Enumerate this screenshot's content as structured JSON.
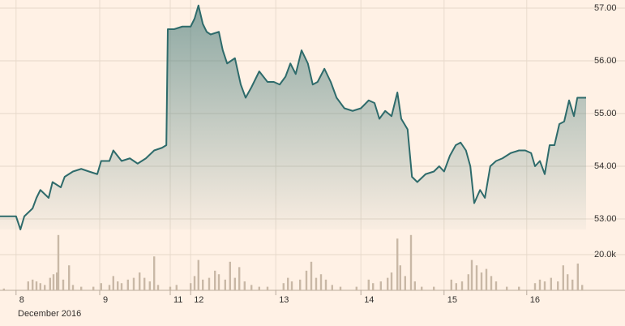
{
  "chart_data": {
    "type": "line",
    "xlabel": "December 2016",
    "x": [
      0,
      3.3,
      4.2,
      5,
      6.7,
      7.5,
      8.3,
      10,
      10.8,
      12.5,
      13.3,
      15,
      16.7,
      18.3,
      20,
      20.8,
      22.5,
      23.3,
      25,
      26.7,
      28.3,
      30,
      31.7,
      33.3,
      34.2,
      34.5,
      35.8,
      37.5,
      39.2,
      40,
      40.8,
      41.7,
      42.5,
      43.3,
      45,
      45.8,
      46.7,
      48.3,
      49.5,
      50.5,
      51.7,
      53.3,
      55,
      56.3,
      57.5,
      58.7,
      59.7,
      60.8,
      62,
      63.3,
      64.3,
      65.3,
      66.7,
      68,
      69.2,
      70.8,
      72.5,
      74.2,
      75.8,
      77,
      78,
      79.2,
      80.5,
      81.7,
      82.5,
      83.8,
      84.7,
      85.8,
      87.5,
      89.2,
      90.3,
      91.3,
      92.5,
      93.7,
      94.7,
      95.8,
      96.7,
      97.5,
      98.7,
      99.7,
      100.8,
      102,
      103.3,
      105,
      106.7,
      108,
      109.2,
      110,
      111,
      112,
      113,
      114,
      115,
      116,
      117,
      118,
      118.7,
      119.7,
      120.5
    ],
    "series": [
      {
        "color": "#2e6b6b",
        "values": [
          53.05,
          53.05,
          52.8,
          53.05,
          53.2,
          53.4,
          53.55,
          53.4,
          53.7,
          53.6,
          53.8,
          53.9,
          53.95,
          53.9,
          53.85,
          54.1,
          54.1,
          54.3,
          54.1,
          54.15,
          54.05,
          54.15,
          54.3,
          54.35,
          54.4,
          56.6,
          56.6,
          56.65,
          56.65,
          56.8,
          57.05,
          56.7,
          56.55,
          56.5,
          56.55,
          56.2,
          55.95,
          56.05,
          55.55,
          55.3,
          55.5,
          55.8,
          55.6,
          55.6,
          55.55,
          55.7,
          55.95,
          55.75,
          56.2,
          55.95,
          55.55,
          55.6,
          55.85,
          55.6,
          55.3,
          55.1,
          55.05,
          55.1,
          55.25,
          55.2,
          54.9,
          55.05,
          54.95,
          55.4,
          54.9,
          54.7,
          53.8,
          53.7,
          53.85,
          53.9,
          54,
          53.9,
          54.2,
          54.4,
          54.45,
          54.3,
          54,
          53.3,
          53.55,
          53.4,
          54,
          54.1,
          54.15,
          54.25,
          54.3,
          54.3,
          54.25,
          54,
          54.1,
          53.85,
          54.4,
          54.4,
          54.8,
          54.85,
          55.25,
          54.95,
          55.3,
          55.3,
          55.3
        ]
      }
    ],
    "xlim": [
      0,
      120.5
    ],
    "xticks": [
      {
        "value": 3.3,
        "label": "8"
      },
      {
        "value": 20.5,
        "label": "9"
      },
      {
        "value": 35,
        "label": "11"
      },
      {
        "value": 39.2,
        "label": "12"
      },
      {
        "value": 56.7,
        "label": "13"
      },
      {
        "value": 74.2,
        "label": "14"
      },
      {
        "value": 91.3,
        "label": "15"
      },
      {
        "value": 108.3,
        "label": "16"
      }
    ],
    "ylim": [
      52.8,
      57.1
    ],
    "yticks": [
      {
        "value": 53,
        "label": "53.00"
      },
      {
        "value": 54,
        "label": "54.00"
      },
      {
        "value": 55,
        "label": "55.00"
      },
      {
        "value": 56,
        "label": "56.00"
      },
      {
        "value": 57,
        "label": "57.00"
      }
    ],
    "grid": true,
    "volume": {
      "type": "bar",
      "color": "#c9b8a6",
      "x": [
        0.8,
        5.8,
        6.7,
        7.5,
        8.3,
        9.2,
        10.3,
        11,
        11.7,
        12,
        13,
        14.2,
        15,
        16.7,
        19.2,
        20.8,
        22.5,
        23.3,
        24.2,
        25,
        26.3,
        27.5,
        28.7,
        29.7,
        30.8,
        31.7,
        32.5,
        35,
        36.3,
        39.2,
        40,
        40.8,
        41.7,
        43,
        44.2,
        45,
        46.3,
        47.3,
        48.3,
        49.2,
        50.3,
        51.7,
        53.3,
        55,
        58.3,
        59.2,
        60,
        61.7,
        63,
        64,
        65,
        66,
        67,
        68.3,
        70,
        73.3,
        75.8,
        76.7,
        78.3,
        79.7,
        80.5,
        81.7,
        82.3,
        83.3,
        84.5,
        85.3,
        86.7,
        89.2,
        92.8,
        93.8,
        95,
        96.3,
        97,
        98,
        99,
        100,
        101,
        102,
        104.2,
        106.7,
        110,
        111,
        112,
        113.3,
        114.7,
        115.8,
        116.7,
        117.7,
        118.8,
        119.7
      ],
      "values": [
        1000,
        5000,
        6000,
        5000,
        4000,
        3000,
        7000,
        9000,
        10000,
        31000,
        6000,
        14000,
        3000,
        2000,
        2000,
        4000,
        3000,
        8000,
        5000,
        4000,
        6000,
        7000,
        10000,
        7000,
        5000,
        19000,
        3000,
        2000,
        3000,
        4000,
        8000,
        17000,
        6000,
        7000,
        11000,
        9000,
        6000,
        16000,
        7000,
        13000,
        5000,
        3000,
        2000,
        2000,
        4000,
        7000,
        5000,
        6000,
        11000,
        16000,
        7000,
        9000,
        6000,
        3000,
        2000,
        2000,
        6000,
        4000,
        5000,
        7000,
        10000,
        29000,
        14000,
        8000,
        31000,
        5000,
        2000,
        2000,
        6000,
        4000,
        5000,
        9000,
        17000,
        14000,
        10000,
        12000,
        8000,
        5000,
        2000,
        2000,
        4000,
        6000,
        5000,
        7000,
        5000,
        14000,
        9000,
        6000,
        15000,
        3000
      ],
      "ylim": [
        0,
        32000
      ],
      "yticks": [
        {
          "value": 20000,
          "label": "20.0k"
        }
      ]
    }
  }
}
